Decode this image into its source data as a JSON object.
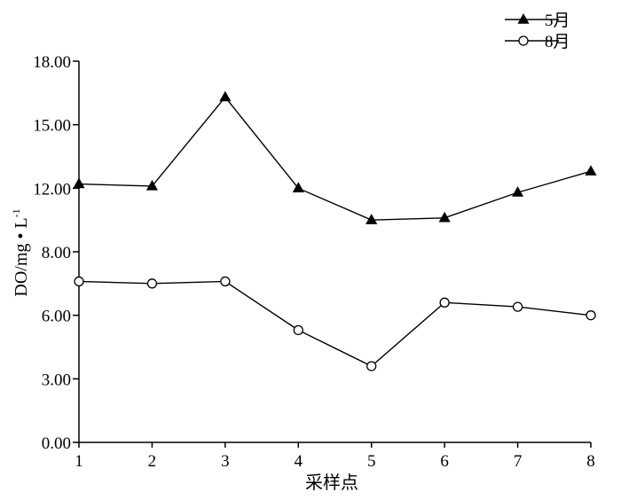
{
  "chart_data": {
    "type": "line",
    "title": "",
    "xlabel": "采样点",
    "ylabel": "DO/mg • L",
    "ylabel_superscript": "-1",
    "x": [
      1,
      2,
      3,
      4,
      5,
      6,
      7,
      8
    ],
    "x_tick_labels": [
      "1",
      "2",
      "3",
      "4",
      "5",
      "6",
      "7",
      "8"
    ],
    "y_tick_labels": [
      "0.00",
      "3.00",
      "6.00",
      "8.00",
      "12.00",
      "15.00",
      "18.00"
    ],
    "ylim": [
      0,
      18
    ],
    "grid": false,
    "legend_position": "top-right",
    "series": [
      {
        "name": "5月",
        "marker": "filled-triangle",
        "values": [
          12.2,
          12.1,
          16.3,
          12.0,
          10.5,
          10.6,
          11.8,
          12.8
        ]
      },
      {
        "name": "8月",
        "marker": "open-circle",
        "values": [
          7.6,
          7.5,
          7.6,
          5.3,
          3.6,
          6.6,
          6.4,
          6.0
        ]
      }
    ]
  }
}
